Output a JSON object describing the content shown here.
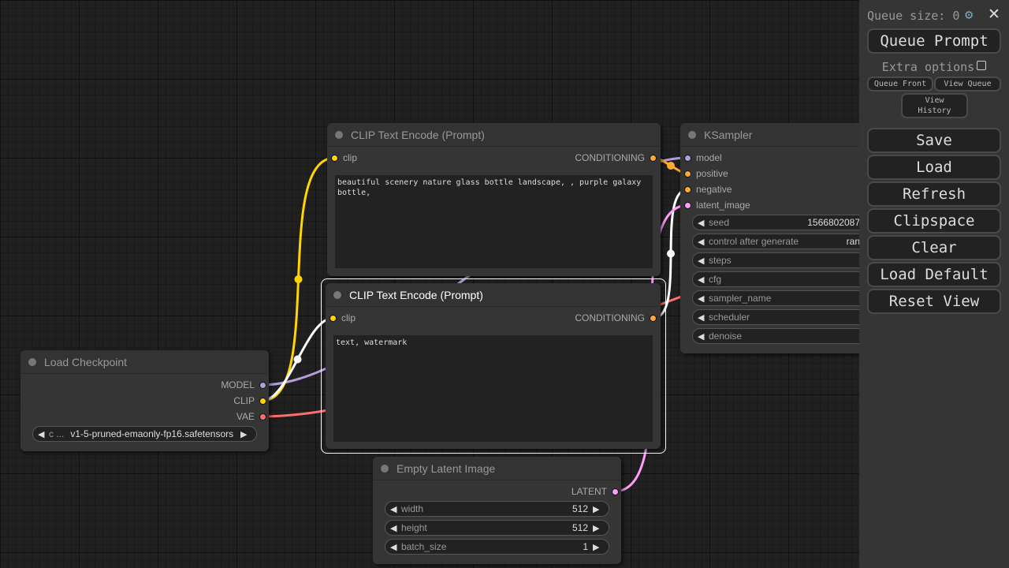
{
  "colors": {
    "model": "#b39ddb",
    "clip": "#ffd500",
    "vae": "#ff6e6e",
    "conditioning": "#ffa931",
    "latent": "#ff9cf9"
  },
  "nodes": {
    "clip_pos": {
      "title": "CLIP Text Encode (Prompt)",
      "input": "clip",
      "output": "CONDITIONING",
      "text": "beautiful scenery nature glass bottle landscape, , purple galaxy bottle,"
    },
    "clip_neg": {
      "title": "CLIP Text Encode (Prompt)",
      "input": "clip",
      "output": "CONDITIONING",
      "text": "text, watermark"
    },
    "checkpoint": {
      "title": "Load Checkpoint",
      "outputs": [
        "MODEL",
        "CLIP",
        "VAE"
      ],
      "widget": {
        "label": "c ...",
        "value": "v1-5-pruned-emaonly-fp16.safetensors"
      }
    },
    "ksampler": {
      "title": "KSampler",
      "inputs": [
        "model",
        "positive",
        "negative",
        "latent_image"
      ],
      "widgets": [
        {
          "label": "seed",
          "value": "1566802087"
        },
        {
          "label": "control after generate",
          "value": "ran"
        },
        {
          "label": "steps",
          "value": ""
        },
        {
          "label": "cfg",
          "value": ""
        },
        {
          "label": "sampler_name",
          "value": ""
        },
        {
          "label": "scheduler",
          "value": ""
        },
        {
          "label": "denoise",
          "value": ""
        }
      ]
    },
    "latent": {
      "title": "Empty Latent Image",
      "output": "LATENT",
      "widgets": [
        {
          "label": "width",
          "value": "512"
        },
        {
          "label": "height",
          "value": "512"
        },
        {
          "label": "batch_size",
          "value": "1"
        }
      ]
    }
  },
  "panel": {
    "queue_size": "Queue size: 0",
    "queue_prompt": "Queue Prompt",
    "extra_options": "Extra options",
    "queue_front": "Queue Front",
    "view_queue": "View Queue",
    "view_history": "View History",
    "buttons": [
      "Save",
      "Load",
      "Refresh",
      "Clipspace",
      "Clear",
      "Load Default",
      "Reset View"
    ]
  }
}
